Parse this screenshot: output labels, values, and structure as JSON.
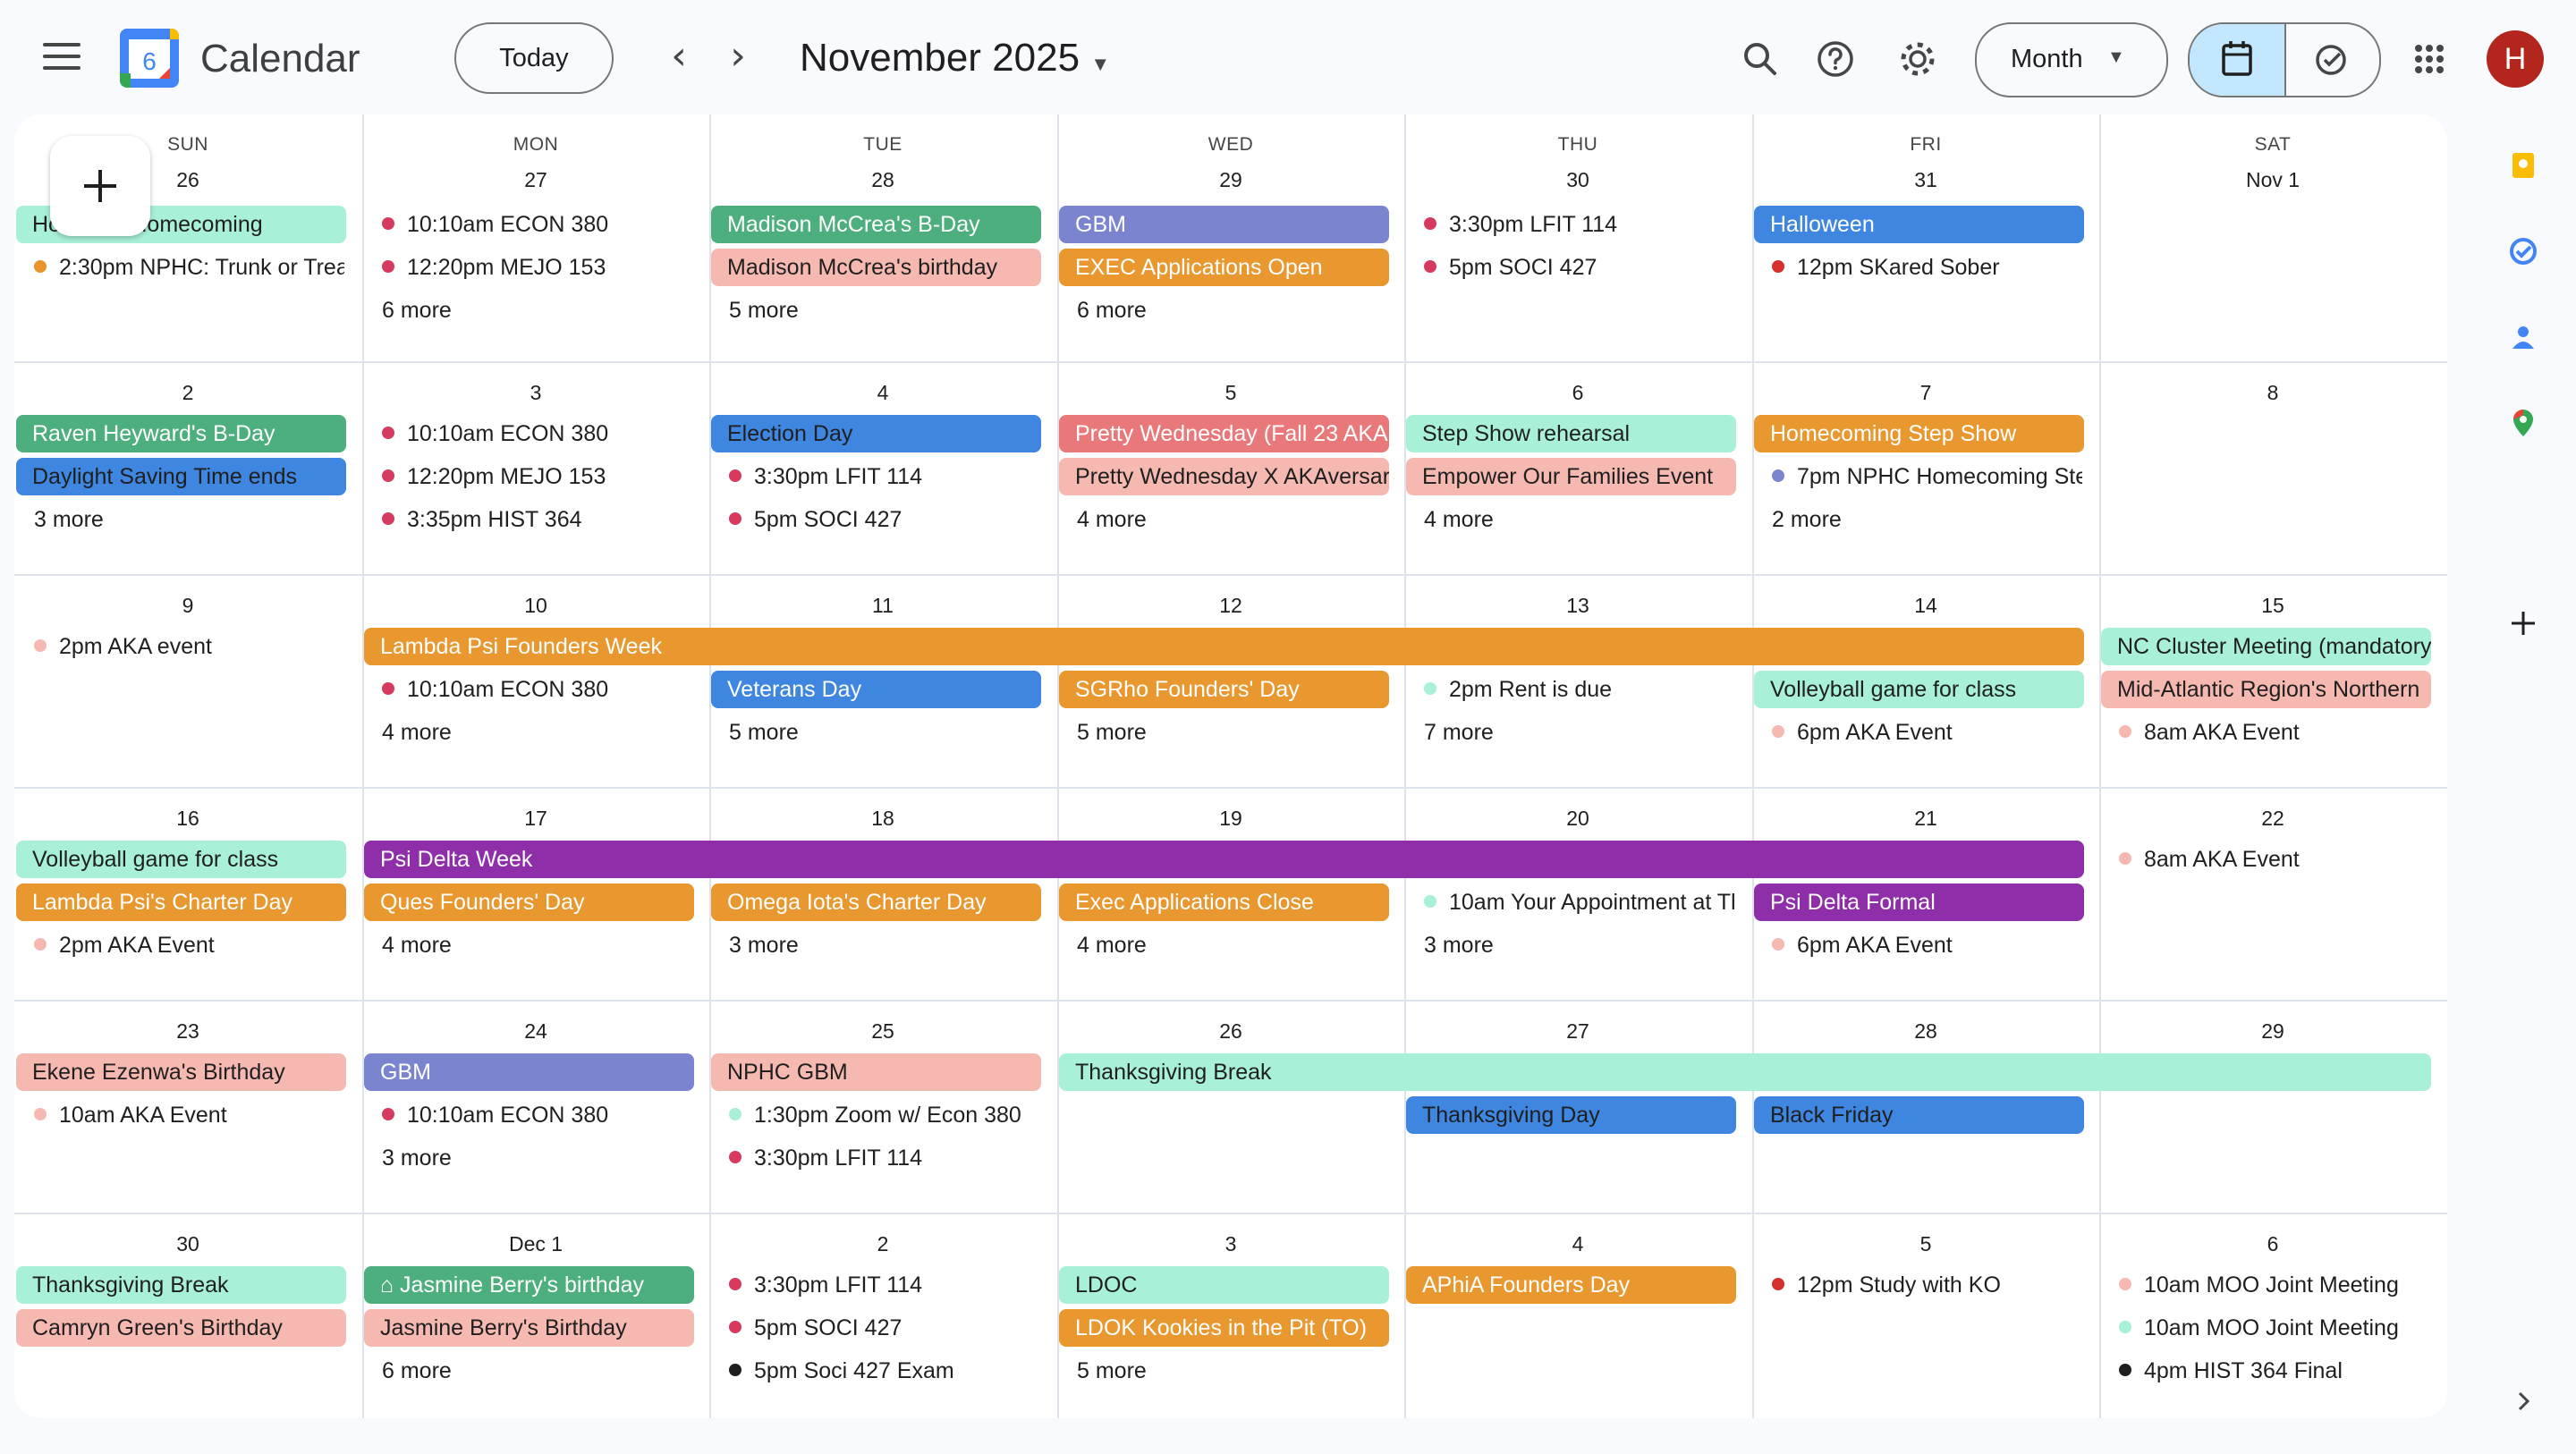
{
  "header": {
    "app_title": "Calendar",
    "logo_day": "6",
    "today_label": "Today",
    "month_title": "November 2025",
    "view_label": "Month",
    "avatar_initial": "H"
  },
  "day_names": [
    "SUN",
    "MON",
    "TUE",
    "WED",
    "THU",
    "FRI",
    "SAT"
  ],
  "weeks": [
    {
      "days": [
        "26",
        "27",
        "28",
        "29",
        "30",
        "31",
        "Nov 1"
      ]
    },
    {
      "days": [
        "2",
        "3",
        "4",
        "5",
        "6",
        "7",
        "8"
      ]
    },
    {
      "days": [
        "9",
        "10",
        "11",
        "12",
        "13",
        "14",
        "15"
      ]
    },
    {
      "days": [
        "16",
        "17",
        "18",
        "19",
        "20",
        "21",
        "22"
      ]
    },
    {
      "days": [
        "23",
        "24",
        "25",
        "26",
        "27",
        "28",
        "29"
      ]
    },
    {
      "days": [
        "30",
        "Dec 1",
        "2",
        "3",
        "4",
        "5",
        "6"
      ]
    }
  ],
  "events": [
    {
      "w": 0,
      "c": 0,
      "span": 1,
      "row": 0,
      "type": "chip",
      "text": "Howard's Homecoming",
      "color": "#a8f0d8",
      "fg": "#1f1f1f"
    },
    {
      "w": 0,
      "c": 0,
      "row": 1,
      "type": "dot",
      "time": "2:30pm",
      "text": "NPHC: Trunk or Treat",
      "color": "#e8932c"
    },
    {
      "w": 0,
      "c": 1,
      "row": 0,
      "type": "dot",
      "time": "10:10am",
      "text": "ECON 380",
      "color": "#d63b5f"
    },
    {
      "w": 0,
      "c": 1,
      "row": 1,
      "type": "dot",
      "time": "12:20pm",
      "text": "MEJO 153",
      "color": "#d63b5f"
    },
    {
      "w": 0,
      "c": 1,
      "row": 2,
      "type": "more",
      "text": "6 more"
    },
    {
      "w": 0,
      "c": 2,
      "span": 1,
      "row": 0,
      "type": "chip",
      "text": "Madison McCrea's B-Day",
      "color": "#4caf7d",
      "fg": "#ffffff"
    },
    {
      "w": 0,
      "c": 2,
      "span": 1,
      "row": 1,
      "type": "chip",
      "text": "Madison McCrea's birthday",
      "color": "#f6b9b2",
      "fg": "#1f1f1f"
    },
    {
      "w": 0,
      "c": 2,
      "row": 2,
      "type": "more",
      "text": "5 more"
    },
    {
      "w": 0,
      "c": 3,
      "span": 1,
      "row": 0,
      "type": "chip",
      "text": "GBM",
      "color": "#7b85cf",
      "fg": "#ffffff"
    },
    {
      "w": 0,
      "c": 3,
      "span": 1,
      "row": 1,
      "type": "chip",
      "text": "EXEC Applications Open",
      "color": "#e8982f",
      "fg": "#ffffff"
    },
    {
      "w": 0,
      "c": 3,
      "row": 2,
      "type": "more",
      "text": "6 more"
    },
    {
      "w": 0,
      "c": 4,
      "row": 0,
      "type": "dot",
      "time": "3:30pm",
      "text": "LFIT 114",
      "color": "#d63b5f"
    },
    {
      "w": 0,
      "c": 4,
      "row": 1,
      "type": "dot",
      "time": "5pm",
      "text": "SOCI 427",
      "color": "#d63b5f"
    },
    {
      "w": 0,
      "c": 5,
      "span": 1,
      "row": 0,
      "type": "chip",
      "text": "Halloween",
      "color": "#3e86e0",
      "fg": "#ffffff"
    },
    {
      "w": 0,
      "c": 5,
      "row": 1,
      "type": "dot",
      "time": "12pm",
      "text": "SKared Sober",
      "color": "#d5302b"
    },
    {
      "w": 1,
      "c": 0,
      "span": 1,
      "row": 0,
      "type": "chip",
      "text": "Raven Heyward's B-Day",
      "color": "#4caf7d",
      "fg": "#ffffff"
    },
    {
      "w": 1,
      "c": 0,
      "span": 1,
      "row": 1,
      "type": "chip",
      "text": "Daylight Saving Time ends",
      "color": "#3e86e0",
      "fg": "#1f1f1f"
    },
    {
      "w": 1,
      "c": 0,
      "row": 2,
      "type": "more",
      "text": "3 more"
    },
    {
      "w": 1,
      "c": 1,
      "row": 0,
      "type": "dot",
      "time": "10:10am",
      "text": "ECON 380",
      "color": "#d63b5f"
    },
    {
      "w": 1,
      "c": 1,
      "row": 1,
      "type": "dot",
      "time": "12:20pm",
      "text": "MEJO 153",
      "color": "#d63b5f"
    },
    {
      "w": 1,
      "c": 1,
      "row": 2,
      "type": "dot",
      "time": "3:35pm",
      "text": "HIST 364",
      "color": "#d63b5f"
    },
    {
      "w": 1,
      "c": 2,
      "span": 1,
      "row": 0,
      "type": "chip",
      "text": "Election Day",
      "color": "#3e86e0",
      "fg": "#1f1f1f"
    },
    {
      "w": 1,
      "c": 2,
      "row": 1,
      "type": "dot",
      "time": "3:30pm",
      "text": "LFIT 114",
      "color": "#d63b5f"
    },
    {
      "w": 1,
      "c": 2,
      "row": 2,
      "type": "dot",
      "time": "5pm",
      "text": "SOCI 427",
      "color": "#d63b5f"
    },
    {
      "w": 1,
      "c": 3,
      "span": 1,
      "row": 0,
      "type": "chip",
      "text": "Pretty Wednesday (Fall 23 AKA",
      "color": "#e8787a",
      "fg": "#ffffff"
    },
    {
      "w": 1,
      "c": 3,
      "span": 1,
      "row": 1,
      "type": "chip",
      "text": "Pretty Wednesday X AKAversary",
      "color": "#f6b9b2",
      "fg": "#1f1f1f"
    },
    {
      "w": 1,
      "c": 3,
      "row": 2,
      "type": "more",
      "text": "4 more"
    },
    {
      "w": 1,
      "c": 4,
      "span": 1,
      "row": 0,
      "type": "chip",
      "text": "Step Show rehearsal",
      "color": "#a8f0d8",
      "fg": "#1f1f1f"
    },
    {
      "w": 1,
      "c": 4,
      "span": 1,
      "row": 1,
      "type": "chip",
      "text": "Empower Our Families Event",
      "color": "#f6b9b2",
      "fg": "#1f1f1f"
    },
    {
      "w": 1,
      "c": 4,
      "row": 2,
      "type": "more",
      "text": "4 more"
    },
    {
      "w": 1,
      "c": 5,
      "span": 1,
      "row": 0,
      "type": "chip",
      "text": "Homecoming Step Show",
      "color": "#e8982f",
      "fg": "#ffffff"
    },
    {
      "w": 1,
      "c": 5,
      "row": 1,
      "type": "dot",
      "time": "7pm",
      "text": "NPHC Homecoming Step Show",
      "color": "#7b85cf"
    },
    {
      "w": 1,
      "c": 5,
      "row": 2,
      "type": "more",
      "text": "2 more"
    },
    {
      "w": 2,
      "c": 0,
      "row": 0,
      "type": "dot",
      "time": "2pm",
      "text": "AKA event",
      "color": "#f6b9b2"
    },
    {
      "w": 2,
      "c": 1,
      "span": 5,
      "row": 0,
      "type": "chip",
      "text": "Lambda Psi Founders Week",
      "color": "#e8982f",
      "fg": "#ffffff"
    },
    {
      "w": 2,
      "c": 1,
      "row": 1,
      "type": "dot",
      "time": "10:10am",
      "text": "ECON 380",
      "color": "#d63b5f"
    },
    {
      "w": 2,
      "c": 1,
      "row": 2,
      "type": "more",
      "text": "4 more"
    },
    {
      "w": 2,
      "c": 2,
      "span": 1,
      "row": 1,
      "type": "chip",
      "text": "Veterans Day",
      "color": "#3e86e0",
      "fg": "#ffffff"
    },
    {
      "w": 2,
      "c": 2,
      "row": 2,
      "type": "more",
      "text": "5 more"
    },
    {
      "w": 2,
      "c": 3,
      "span": 1,
      "row": 1,
      "type": "chip",
      "text": "SGRho Founders' Day",
      "color": "#e8982f",
      "fg": "#ffffff"
    },
    {
      "w": 2,
      "c": 3,
      "row": 2,
      "type": "more",
      "text": "5 more"
    },
    {
      "w": 2,
      "c": 4,
      "row": 1,
      "type": "dot",
      "time": "2pm",
      "text": "Rent is due",
      "color": "#a8f0d8"
    },
    {
      "w": 2,
      "c": 4,
      "row": 2,
      "type": "more",
      "text": "7 more"
    },
    {
      "w": 2,
      "c": 5,
      "span": 1,
      "row": 1,
      "type": "chip",
      "text": "Volleyball game for class",
      "color": "#a8f0d8",
      "fg": "#1f1f1f"
    },
    {
      "w": 2,
      "c": 5,
      "row": 2,
      "type": "dot",
      "time": "6pm",
      "text": "AKA Event",
      "color": "#f6b9b2"
    },
    {
      "w": 2,
      "c": 6,
      "span": 1,
      "row": 0,
      "type": "chip",
      "text": "NC Cluster Meeting (mandatory)",
      "color": "#a8f0d8",
      "fg": "#1f1f1f"
    },
    {
      "w": 2,
      "c": 6,
      "span": 1,
      "row": 1,
      "type": "chip",
      "text": "Mid-Atlantic Region's Northern",
      "color": "#f6b9b2",
      "fg": "#1f1f1f"
    },
    {
      "w": 2,
      "c": 6,
      "row": 2,
      "type": "dot",
      "time": "8am",
      "text": "AKA Event",
      "color": "#f6b9b2"
    },
    {
      "w": 3,
      "c": 0,
      "span": 1,
      "row": 0,
      "type": "chip",
      "text": "Volleyball game for class",
      "color": "#a8f0d8",
      "fg": "#1f1f1f"
    },
    {
      "w": 3,
      "c": 0,
      "span": 1,
      "row": 1,
      "type": "chip",
      "text": "Lambda Psi's Charter Day",
      "color": "#e8982f",
      "fg": "#ffffff"
    },
    {
      "w": 3,
      "c": 0,
      "row": 2,
      "type": "dot",
      "time": "2pm",
      "text": "AKA Event",
      "color": "#f6b9b2"
    },
    {
      "w": 3,
      "c": 1,
      "span": 5,
      "row": 0,
      "type": "chip",
      "text": "Psi Delta Week",
      "color": "#8e2ea8",
      "fg": "#ffffff"
    },
    {
      "w": 3,
      "c": 1,
      "span": 1,
      "row": 1,
      "type": "chip",
      "text": "Ques Founders' Day",
      "color": "#e8982f",
      "fg": "#ffffff"
    },
    {
      "w": 3,
      "c": 1,
      "row": 2,
      "type": "more",
      "text": "4 more"
    },
    {
      "w": 3,
      "c": 2,
      "span": 1,
      "row": 1,
      "type": "chip",
      "text": "Omega Iota's Charter Day",
      "color": "#e8982f",
      "fg": "#ffffff"
    },
    {
      "w": 3,
      "c": 2,
      "row": 2,
      "type": "more",
      "text": "3 more"
    },
    {
      "w": 3,
      "c": 3,
      "span": 1,
      "row": 1,
      "type": "chip",
      "text": "Exec Applications Close",
      "color": "#e8982f",
      "fg": "#ffffff"
    },
    {
      "w": 3,
      "c": 3,
      "row": 2,
      "type": "more",
      "text": "4 more"
    },
    {
      "w": 3,
      "c": 4,
      "row": 1,
      "type": "dot",
      "time": "10am",
      "text": "Your Appointment at The",
      "color": "#a8f0d8"
    },
    {
      "w": 3,
      "c": 4,
      "row": 2,
      "type": "more",
      "text": "3 more"
    },
    {
      "w": 3,
      "c": 5,
      "span": 1,
      "row": 1,
      "type": "chip",
      "text": "Psi Delta Formal",
      "color": "#8e2ea8",
      "fg": "#ffffff"
    },
    {
      "w": 3,
      "c": 5,
      "row": 2,
      "type": "dot",
      "time": "6pm",
      "text": "AKA Event",
      "color": "#f6b9b2"
    },
    {
      "w": 3,
      "c": 6,
      "row": 0,
      "type": "dot",
      "time": "8am",
      "text": "AKA Event",
      "color": "#f6b9b2"
    },
    {
      "w": 4,
      "c": 0,
      "span": 1,
      "row": 0,
      "type": "chip",
      "text": "Ekene Ezenwa's Birthday",
      "color": "#f6b9b2",
      "fg": "#1f1f1f"
    },
    {
      "w": 4,
      "c": 0,
      "row": 1,
      "type": "dot",
      "time": "10am",
      "text": "AKA Event",
      "color": "#f6b9b2"
    },
    {
      "w": 4,
      "c": 1,
      "span": 1,
      "row": 0,
      "type": "chip",
      "text": "GBM",
      "color": "#7b85cf",
      "fg": "#ffffff"
    },
    {
      "w": 4,
      "c": 1,
      "row": 1,
      "type": "dot",
      "time": "10:10am",
      "text": "ECON 380",
      "color": "#d63b5f"
    },
    {
      "w": 4,
      "c": 1,
      "row": 2,
      "type": "more",
      "text": "3 more"
    },
    {
      "w": 4,
      "c": 2,
      "span": 1,
      "row": 0,
      "type": "chip",
      "text": "NPHC GBM",
      "color": "#f6b9b2",
      "fg": "#1f1f1f"
    },
    {
      "w": 4,
      "c": 2,
      "row": 1,
      "type": "dot",
      "time": "1:30pm",
      "text": "Zoom w/ Econ 380",
      "color": "#a8f0d8"
    },
    {
      "w": 4,
      "c": 2,
      "row": 2,
      "type": "dot",
      "time": "3:30pm",
      "text": "LFIT 114",
      "color": "#d63b5f"
    },
    {
      "w": 4,
      "c": 3,
      "span": 4,
      "row": 0,
      "type": "chip",
      "text": "Thanksgiving Break",
      "color": "#a8f0d8",
      "fg": "#1f1f1f"
    },
    {
      "w": 4,
      "c": 4,
      "span": 1,
      "row": 1,
      "type": "chip",
      "text": "Thanksgiving Day",
      "color": "#3e86e0",
      "fg": "#1f1f1f"
    },
    {
      "w": 4,
      "c": 5,
      "span": 1,
      "row": 1,
      "type": "chip",
      "text": "Black Friday",
      "color": "#3e86e0",
      "fg": "#1f1f1f"
    },
    {
      "w": 5,
      "c": 0,
      "span": 1,
      "row": 0,
      "type": "chip",
      "text": "Thanksgiving Break",
      "color": "#a8f0d8",
      "fg": "#1f1f1f"
    },
    {
      "w": 5,
      "c": 0,
      "span": 1,
      "row": 1,
      "type": "chip",
      "text": "Camryn Green's Birthday",
      "color": "#f6b9b2",
      "fg": "#1f1f1f"
    },
    {
      "w": 5,
      "c": 1,
      "span": 1,
      "row": 0,
      "type": "chip",
      "text": "Jasmine Berry's birthday",
      "color": "#4caf7d",
      "fg": "#ffffff",
      "icon": "cake"
    },
    {
      "w": 5,
      "c": 1,
      "span": 1,
      "row": 1,
      "type": "chip",
      "text": "Jasmine Berry's Birthday",
      "color": "#f6b9b2",
      "fg": "#1f1f1f"
    },
    {
      "w": 5,
      "c": 1,
      "row": 2,
      "type": "more",
      "text": "6 more"
    },
    {
      "w": 5,
      "c": 2,
      "row": 0,
      "type": "dot",
      "time": "3:30pm",
      "text": "LFIT 114",
      "color": "#d63b5f"
    },
    {
      "w": 5,
      "c": 2,
      "row": 1,
      "type": "dot",
      "time": "5pm",
      "text": "SOCI 427",
      "color": "#d63b5f"
    },
    {
      "w": 5,
      "c": 2,
      "row": 2,
      "type": "dot",
      "time": "5pm",
      "text": "Soci 427 Exam",
      "color": "#1f1f1f"
    },
    {
      "w": 5,
      "c": 3,
      "span": 1,
      "row": 0,
      "type": "chip",
      "text": "LDOC",
      "color": "#a8f0d8",
      "fg": "#1f1f1f"
    },
    {
      "w": 5,
      "c": 3,
      "span": 1,
      "row": 1,
      "type": "chip",
      "text": "LDOK Kookies in the Pit (TO)",
      "color": "#e8982f",
      "fg": "#ffffff"
    },
    {
      "w": 5,
      "c": 3,
      "row": 2,
      "type": "more",
      "text": "5 more"
    },
    {
      "w": 5,
      "c": 4,
      "span": 1,
      "row": 0,
      "type": "chip",
      "text": "APhiA Founders Day",
      "color": "#e8982f",
      "fg": "#ffffff"
    },
    {
      "w": 5,
      "c": 5,
      "row": 0,
      "type": "dot",
      "time": "12pm",
      "text": "Study with KO",
      "color": "#d5302b"
    },
    {
      "w": 5,
      "c": 6,
      "row": 0,
      "type": "dot",
      "time": "10am",
      "text": "MOO Joint Meeting",
      "color": "#f6b9b2"
    },
    {
      "w": 5,
      "c": 6,
      "row": 1,
      "type": "dot",
      "time": "10am",
      "text": "MOO Joint Meeting",
      "color": "#a8f0d8"
    },
    {
      "w": 5,
      "c": 6,
      "row": 2,
      "type": "dot",
      "time": "4pm",
      "text": "HIST 364 Final",
      "color": "#1f1f1f"
    }
  ]
}
